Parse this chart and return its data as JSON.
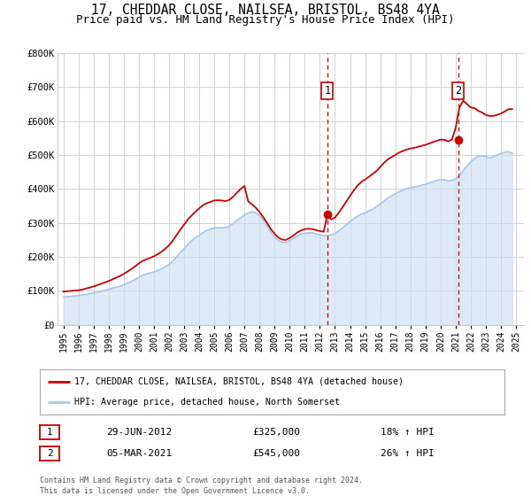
{
  "title": "17, CHEDDAR CLOSE, NAILSEA, BRISTOL, BS48 4YA",
  "subtitle": "Price paid vs. HM Land Registry's House Price Index (HPI)",
  "ylim": [
    0,
    800000
  ],
  "yticks": [
    0,
    100000,
    200000,
    300000,
    400000,
    500000,
    600000,
    700000,
    800000
  ],
  "ytick_labels": [
    "£0",
    "£100K",
    "£200K",
    "£300K",
    "£400K",
    "£500K",
    "£600K",
    "£700K",
    "£800K"
  ],
  "xlim_start": 1994.6,
  "xlim_end": 2025.5,
  "xtick_years": [
    1995,
    1996,
    1997,
    1998,
    1999,
    2000,
    2001,
    2002,
    2003,
    2004,
    2005,
    2006,
    2007,
    2008,
    2009,
    2010,
    2011,
    2012,
    2013,
    2014,
    2015,
    2016,
    2017,
    2018,
    2019,
    2020,
    2021,
    2022,
    2023,
    2024,
    2025
  ],
  "red_line_color": "#cc0000",
  "blue_line_color": "#a8c8e8",
  "blue_fill_color": "#c8dff0",
  "dashed_line_color": "#cc0000",
  "marker_color": "#cc0000",
  "transaction1_x": 2012.49,
  "transaction1_y": 325000,
  "transaction2_x": 2021.17,
  "transaction2_y": 545000,
  "legend_label_red": "17, CHEDDAR CLOSE, NAILSEA, BRISTOL, BS48 4YA (detached house)",
  "legend_label_blue": "HPI: Average price, detached house, North Somerset",
  "table_row1": [
    "1",
    "29-JUN-2012",
    "£325,000",
    "18% ↑ HPI"
  ],
  "table_row2": [
    "2",
    "05-MAR-2021",
    "£545,000",
    "26% ↑ HPI"
  ],
  "footnote_line1": "Contains HM Land Registry data © Crown copyright and database right 2024.",
  "footnote_line2": "This data is licensed under the Open Government Licence v3.0.",
  "background_color": "#ffffff",
  "plot_bg_color": "#ffffff",
  "grid_color": "#cccccc",
  "title_fontsize": 10.5,
  "subtitle_fontsize": 9,
  "hpi_data_x": [
    1995.0,
    1995.25,
    1995.5,
    1995.75,
    1996.0,
    1996.25,
    1996.5,
    1996.75,
    1997.0,
    1997.25,
    1997.5,
    1997.75,
    1998.0,
    1998.25,
    1998.5,
    1998.75,
    1999.0,
    1999.25,
    1999.5,
    1999.75,
    2000.0,
    2000.25,
    2000.5,
    2000.75,
    2001.0,
    2001.25,
    2001.5,
    2001.75,
    2002.0,
    2002.25,
    2002.5,
    2002.75,
    2003.0,
    2003.25,
    2003.5,
    2003.75,
    2004.0,
    2004.25,
    2004.5,
    2004.75,
    2005.0,
    2005.25,
    2005.5,
    2005.75,
    2006.0,
    2006.25,
    2006.5,
    2006.75,
    2007.0,
    2007.25,
    2007.5,
    2007.75,
    2008.0,
    2008.25,
    2008.5,
    2008.75,
    2009.0,
    2009.25,
    2009.5,
    2009.75,
    2010.0,
    2010.25,
    2010.5,
    2010.75,
    2011.0,
    2011.25,
    2011.5,
    2011.75,
    2012.0,
    2012.25,
    2012.5,
    2012.75,
    2013.0,
    2013.25,
    2013.5,
    2013.75,
    2014.0,
    2014.25,
    2014.5,
    2014.75,
    2015.0,
    2015.25,
    2015.5,
    2015.75,
    2016.0,
    2016.25,
    2016.5,
    2016.75,
    2017.0,
    2017.25,
    2017.5,
    2017.75,
    2018.0,
    2018.25,
    2018.5,
    2018.75,
    2019.0,
    2019.25,
    2019.5,
    2019.75,
    2020.0,
    2020.25,
    2020.5,
    2020.75,
    2021.0,
    2021.25,
    2021.5,
    2021.75,
    2022.0,
    2022.25,
    2022.5,
    2022.75,
    2023.0,
    2023.25,
    2023.5,
    2023.75,
    2024.0,
    2024.25,
    2024.5,
    2024.75
  ],
  "hpi_data_y": [
    82000,
    83000,
    84000,
    85000,
    86000,
    88000,
    90000,
    92000,
    94000,
    96000,
    99000,
    102000,
    105000,
    108000,
    111000,
    114000,
    118000,
    123000,
    128000,
    134000,
    140000,
    146000,
    150000,
    153000,
    156000,
    160000,
    165000,
    171000,
    178000,
    188000,
    200000,
    213000,
    225000,
    237000,
    248000,
    257000,
    264000,
    272000,
    278000,
    282000,
    285000,
    286000,
    286000,
    286000,
    291000,
    298000,
    307000,
    316000,
    323000,
    330000,
    333000,
    330000,
    322000,
    308000,
    290000,
    272000,
    258000,
    248000,
    243000,
    243000,
    248000,
    255000,
    262000,
    267000,
    270000,
    271000,
    271000,
    268000,
    265000,
    263000,
    263000,
    265000,
    269000,
    277000,
    286000,
    295000,
    304000,
    313000,
    320000,
    326000,
    330000,
    336000,
    341000,
    348000,
    356000,
    365000,
    373000,
    380000,
    386000,
    392000,
    397000,
    401000,
    404000,
    406000,
    408000,
    411000,
    414000,
    418000,
    422000,
    425000,
    427000,
    427000,
    424000,
    425000,
    430000,
    440000,
    455000,
    468000,
    480000,
    490000,
    496000,
    498000,
    495000,
    492000,
    495000,
    500000,
    505000,
    508000,
    510000,
    505000
  ],
  "red_data_x": [
    1995.0,
    1995.25,
    1995.5,
    1995.75,
    1996.0,
    1996.25,
    1996.5,
    1996.75,
    1997.0,
    1997.25,
    1997.5,
    1997.75,
    1998.0,
    1998.25,
    1998.5,
    1998.75,
    1999.0,
    1999.25,
    1999.5,
    1999.75,
    2000.0,
    2000.25,
    2000.5,
    2000.75,
    2001.0,
    2001.25,
    2001.5,
    2001.75,
    2002.0,
    2002.25,
    2002.5,
    2002.75,
    2003.0,
    2003.25,
    2003.5,
    2003.75,
    2004.0,
    2004.25,
    2004.5,
    2004.75,
    2005.0,
    2005.25,
    2005.5,
    2005.75,
    2006.0,
    2006.25,
    2006.5,
    2006.75,
    2007.0,
    2007.25,
    2007.5,
    2007.75,
    2008.0,
    2008.25,
    2008.5,
    2008.75,
    2009.0,
    2009.25,
    2009.5,
    2009.75,
    2010.0,
    2010.25,
    2010.5,
    2010.75,
    2011.0,
    2011.25,
    2011.5,
    2011.75,
    2012.0,
    2012.25,
    2012.5,
    2012.75,
    2013.0,
    2013.25,
    2013.5,
    2013.75,
    2014.0,
    2014.25,
    2014.5,
    2014.75,
    2015.0,
    2015.25,
    2015.5,
    2015.75,
    2016.0,
    2016.25,
    2016.5,
    2016.75,
    2017.0,
    2017.25,
    2017.5,
    2017.75,
    2018.0,
    2018.25,
    2018.5,
    2018.75,
    2019.0,
    2019.25,
    2019.5,
    2019.75,
    2020.0,
    2020.25,
    2020.5,
    2020.75,
    2021.0,
    2021.25,
    2021.5,
    2021.75,
    2022.0,
    2022.25,
    2022.5,
    2022.75,
    2023.0,
    2023.25,
    2023.5,
    2023.75,
    2024.0,
    2024.25,
    2024.5,
    2024.75
  ],
  "red_data_y": [
    98000,
    99000,
    100000,
    101000,
    102000,
    104000,
    107000,
    110000,
    113000,
    117000,
    121000,
    125000,
    129000,
    134000,
    139000,
    144000,
    150000,
    157000,
    164000,
    172000,
    181000,
    188000,
    193000,
    197000,
    202000,
    208000,
    215000,
    224000,
    234000,
    248000,
    264000,
    280000,
    295000,
    310000,
    322000,
    333000,
    343000,
    352000,
    358000,
    362000,
    366000,
    367000,
    366000,
    364000,
    368000,
    377000,
    389000,
    400000,
    409000,
    363000,
    355000,
    345000,
    332000,
    317000,
    300000,
    282000,
    268000,
    257000,
    251000,
    250000,
    256000,
    263000,
    272000,
    278000,
    282000,
    283000,
    282000,
    279000,
    276000,
    274000,
    325000,
    310000,
    316000,
    330000,
    346000,
    363000,
    380000,
    396000,
    410000,
    421000,
    428000,
    436000,
    444000,
    453000,
    465000,
    477000,
    487000,
    494000,
    500000,
    507000,
    512000,
    516000,
    519000,
    521000,
    524000,
    527000,
    530000,
    534000,
    538000,
    542000,
    545000,
    545000,
    540000,
    545000,
    580000,
    640000,
    660000,
    650000,
    640000,
    638000,
    630000,
    625000,
    618000,
    615000,
    615000,
    618000,
    622000,
    628000,
    635000,
    635000
  ]
}
